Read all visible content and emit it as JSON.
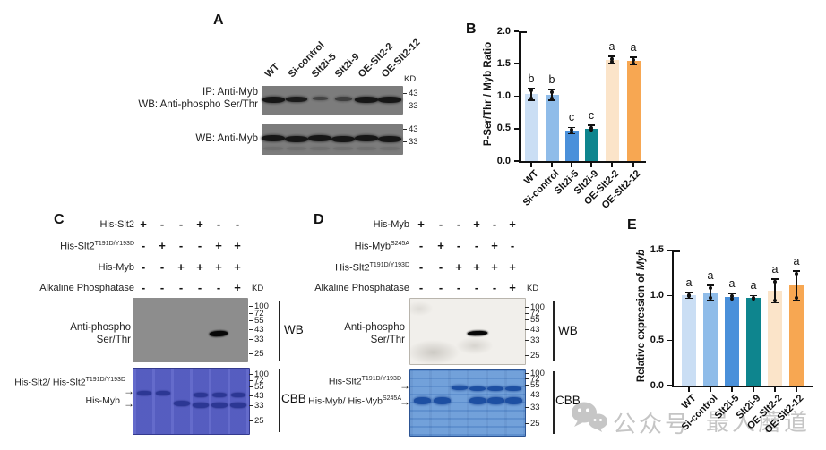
{
  "panels": {
    "A": {
      "letter": "A",
      "lane_labels": [
        "WT",
        "Si-control",
        "Slt2i-5",
        "Slt2i-9",
        "OE-Slt2-2",
        "OE-Slt2-12"
      ],
      "kd": "KD",
      "blot1": {
        "row_labels": [
          "IP: Anti-Myb",
          "WB: Anti-phospho Ser/Thr"
        ],
        "markers": [
          "43",
          "33"
        ],
        "band_intensity": [
          1,
          0.95,
          0.55,
          0.6,
          1,
          1
        ]
      },
      "blot2": {
        "row_labels": [
          "WB: Anti-Myb"
        ],
        "markers": [
          "43",
          "33"
        ],
        "band_intensity": [
          1,
          1,
          1,
          1,
          1,
          1
        ]
      }
    },
    "B": {
      "letter": "B"
    },
    "C": {
      "letter": "C",
      "kd": "KD",
      "treatment_rows": [
        {
          "name": "His-Slt2",
          "sup": "",
          "values": [
            "+",
            "-",
            "-",
            "+",
            "-",
            "-"
          ]
        },
        {
          "name": "His-Slt2",
          "sup": "T191D/Y193D",
          "values": [
            "-",
            "+",
            "-",
            "-",
            "+",
            "+"
          ]
        },
        {
          "name": "His-Myb",
          "sup": "",
          "values": [
            "-",
            "-",
            "+",
            "+",
            "+",
            "+"
          ]
        },
        {
          "name": "Alkaline Phosphatase",
          "sup": "",
          "values": [
            "-",
            "-",
            "-",
            "-",
            "-",
            "+"
          ]
        }
      ],
      "wb": {
        "left_label": [
          "Anti-phospho",
          "Ser/Thr"
        ],
        "markers": [
          "100",
          "72",
          "55",
          "43",
          "33",
          "25"
        ],
        "side_label": "WB",
        "band_lanes": [
          0,
          0,
          0,
          0,
          1,
          0
        ]
      },
      "cbb": {
        "markers": [
          "100",
          "72",
          "55",
          "43",
          "33",
          "25"
        ],
        "side_label": "CBB",
        "arrow": "→",
        "upper_label": {
          "text": "His-Slt2/ His-Slt2",
          "sup": "T191D/Y193D"
        },
        "lower_label": {
          "text": "His-Myb",
          "sup": ""
        },
        "upper_band_lanes": [
          1,
          1,
          0,
          1,
          1,
          1
        ],
        "lower_band_lanes": [
          0,
          0,
          1,
          1,
          1,
          1
        ]
      }
    },
    "D": {
      "letter": "D",
      "kd": "KD",
      "treatment_rows": [
        {
          "name": "His-Myb",
          "sup": "",
          "values": [
            "+",
            "-",
            "-",
            "+",
            "-",
            "+"
          ]
        },
        {
          "name": "His-Myb",
          "sup": "S245A",
          "values": [
            "-",
            "+",
            "-",
            "-",
            "+",
            "-"
          ]
        },
        {
          "name": "His-Slt2",
          "sup": "T191D/Y193D",
          "values": [
            "-",
            "-",
            "+",
            "+",
            "+",
            "+"
          ]
        },
        {
          "name": "Alkaline Phosphatase",
          "sup": "",
          "values": [
            "-",
            "-",
            "-",
            "-",
            "-",
            "+"
          ]
        }
      ],
      "wb": {
        "left_label": [
          "Anti-phospho",
          "Ser/Thr"
        ],
        "markers": [
          "100",
          "72",
          "55",
          "43",
          "33",
          "25"
        ],
        "side_label": "WB",
        "band_lanes": [
          0,
          0,
          0,
          1,
          0,
          0
        ]
      },
      "cbb": {
        "markers": [
          "100",
          "72",
          "55",
          "43",
          "33",
          "25"
        ],
        "side_label": "CBB",
        "arrow": "→",
        "upper_label": {
          "text": "His-Slt2",
          "sup": "T191D/Y193D"
        },
        "lower_label": {
          "text": "His-Myb/ His-Myb",
          "sup": "S245A"
        },
        "upper_band_lanes": [
          0,
          0,
          1,
          1,
          1,
          1
        ],
        "lower_band_lanes": [
          1,
          1,
          0,
          1,
          1,
          1
        ]
      }
    },
    "E": {
      "letter": "E"
    }
  },
  "chart_data": [
    {
      "type": "bar",
      "panel": "B",
      "categories": [
        "WT",
        "Si-control",
        "Slt2i-5",
        "Slt2i-9",
        "OE-Slt2-2",
        "OE-Slt2-12"
      ],
      "values": [
        1.03,
        1.02,
        0.47,
        0.5,
        1.56,
        1.54
      ],
      "errors": [
        0.09,
        0.08,
        0.05,
        0.05,
        0.05,
        0.06
      ],
      "sig_letters": [
        "b",
        "b",
        "c",
        "c",
        "a",
        "a"
      ],
      "ylabel": "P-Ser/Thr / Myb Ratio",
      "ylim": [
        0,
        2.0
      ],
      "yticks": [
        0,
        0.5,
        1.0,
        1.5,
        2.0
      ],
      "grid": false,
      "bar_colors": [
        "#cadef4",
        "#8fbce9",
        "#4a90da",
        "#0e858e",
        "#fbe4c9",
        "#f7a752"
      ]
    },
    {
      "type": "bar",
      "panel": "E",
      "categories": [
        "WT",
        "Si-control",
        "Slt2i-5",
        "Slt2i-9",
        "OE-Slt2-2",
        "OE-Slt2-12"
      ],
      "values": [
        1.0,
        1.03,
        0.98,
        0.97,
        1.05,
        1.11
      ],
      "errors": [
        0.03,
        0.08,
        0.04,
        0.03,
        0.13,
        0.16
      ],
      "sig_letters": [
        "a",
        "a",
        "a",
        "a",
        "a",
        "a"
      ],
      "ylabel": "Relative expression of ",
      "ylabel_italic": "Myb",
      "ylim": [
        0,
        1.5
      ],
      "yticks": [
        0,
        0.5,
        1.0,
        1.5
      ],
      "grid": false,
      "bar_colors": [
        "#cadef4",
        "#8fbce9",
        "#4a90da",
        "#0e858e",
        "#fbe4c9",
        "#f7a752"
      ]
    }
  ],
  "watermark": {
    "icon": "wechat-icon",
    "text_left": "公众号",
    "text_right": "最人蘑道"
  }
}
